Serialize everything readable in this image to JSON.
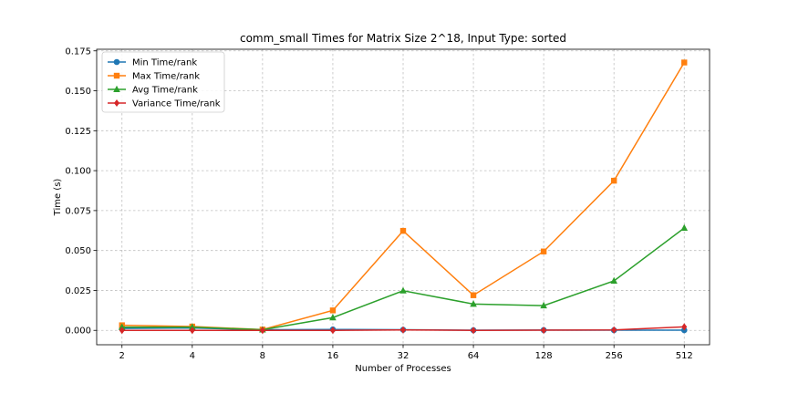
{
  "chart_data": {
    "type": "line",
    "title": "comm_small Times for Matrix Size 2^18, Input Type: sorted",
    "xlabel": "Number of Processes",
    "ylabel": "Time (s)",
    "x_scale": "log2",
    "x": [
      2,
      4,
      8,
      16,
      32,
      64,
      128,
      256,
      512
    ],
    "x_tick_labels": [
      "2",
      "4",
      "8",
      "16",
      "32",
      "64",
      "128",
      "256",
      "512"
    ],
    "ylim": [
      -0.009,
      0.176
    ],
    "y_ticks": [
      0.0,
      0.025,
      0.05,
      0.075,
      0.1,
      0.125,
      0.15,
      0.175
    ],
    "y_tick_labels": [
      "0.000",
      "0.025",
      "0.050",
      "0.075",
      "0.100",
      "0.125",
      "0.150",
      "0.175"
    ],
    "grid": true,
    "legend_position": "top-left",
    "series": [
      {
        "name": "Min Time/rank",
        "color": "#1f77b4",
        "marker": "circle",
        "values": [
          0.0012,
          0.0015,
          0.0004,
          0.0006,
          0.0004,
          0.0001,
          0.0002,
          0.0001,
          0.0001
        ]
      },
      {
        "name": "Max Time/rank",
        "color": "#ff7f0e",
        "marker": "square",
        "values": [
          0.0032,
          0.0024,
          0.0005,
          0.0125,
          0.0623,
          0.022,
          0.0494,
          0.0937,
          0.1677
        ]
      },
      {
        "name": "Avg Time/rank",
        "color": "#2ca02c",
        "marker": "triangle",
        "values": [
          0.002,
          0.002,
          0.0004,
          0.008,
          0.0248,
          0.0165,
          0.0155,
          0.031,
          0.0641
        ]
      },
      {
        "name": "Variance Time/rank",
        "color": "#d62728",
        "marker": "diamond",
        "values": [
          0.0,
          0.0,
          0.0,
          0.0,
          0.0003,
          0.0,
          0.0001,
          0.0003,
          0.0022
        ]
      }
    ]
  }
}
